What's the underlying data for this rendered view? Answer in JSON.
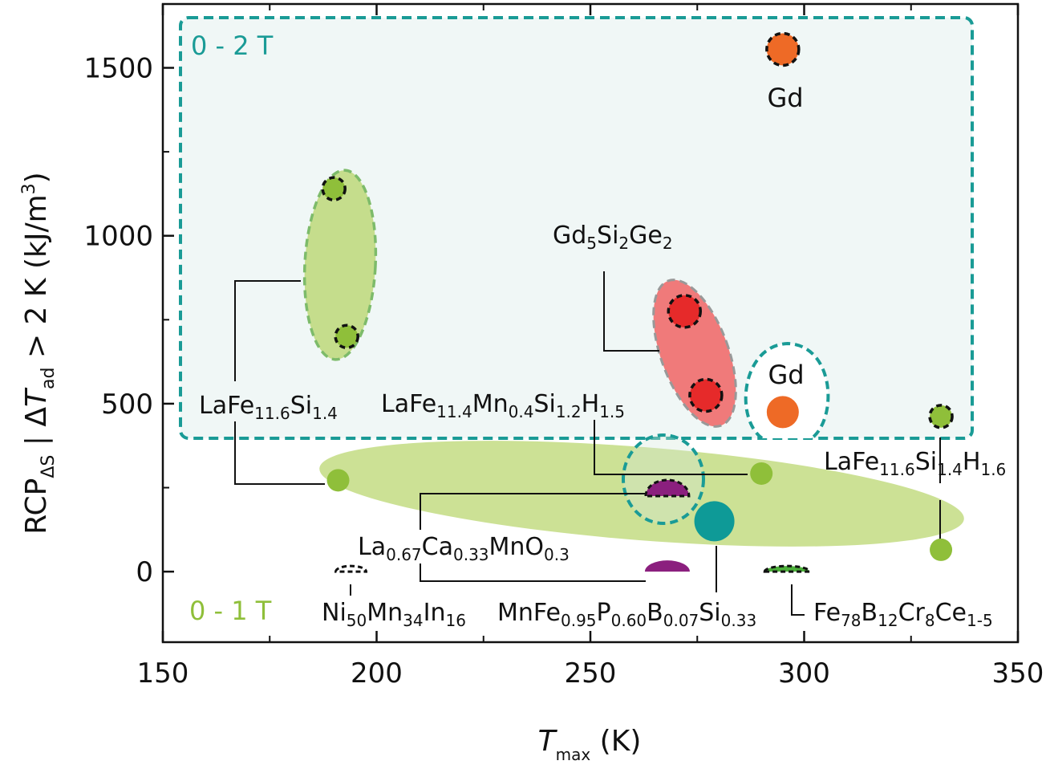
{
  "chart_data": {
    "type": "scatter",
    "x_axis": {
      "label_italic": "T",
      "label_sub": "max",
      "label_unit": " (K)",
      "range": [
        150,
        350
      ],
      "major_ticks": [
        150,
        200,
        250,
        300,
        350
      ]
    },
    "y_axis": {
      "label_main": "RCP",
      "label_sub1": "ΔS",
      "label_pipe": " | Δ",
      "label_italic": "T",
      "label_sub2": "ad",
      "label_rest": " > 2 K (kJ/m",
      "label_sup": "3",
      "label_end": ")",
      "range": [
        -210,
        1690
      ],
      "major_ticks": [
        0,
        500,
        1000,
        1500
      ]
    },
    "field_regions": [
      {
        "label": "0 - 2 T",
        "color": "#1a9b96"
      },
      {
        "label": "0 - 1 T",
        "color": "#8fbf3a"
      }
    ],
    "points": [
      {
        "material": "Gd",
        "x": 295,
        "y": 1555,
        "field": "0-2 T",
        "color": "#ee6a26"
      },
      {
        "material": "Gd",
        "x": 295,
        "y": 475,
        "field": "0-1 T",
        "color": "#ee6a26"
      },
      {
        "material": "LaFe11.6Si1.4",
        "x": 190,
        "y": 1140,
        "field": "0-2 T",
        "color": "#8fbf3a"
      },
      {
        "material": "LaFe11.6Si1.4",
        "x": 193,
        "y": 700,
        "field": "0-2 T",
        "color": "#8fbf3a"
      },
      {
        "material": "LaFe11.6Si1.4",
        "x": 191,
        "y": 272,
        "field": "0-1 T",
        "color": "#8fbf3a"
      },
      {
        "material": "Gd5Si2Ge2",
        "x": 272,
        "y": 775,
        "field": "0-2 T",
        "color": "#e62a2a"
      },
      {
        "material": "Gd5Si2Ge2",
        "x": 277,
        "y": 525,
        "field": "0-2 T",
        "color": "#e62a2a"
      },
      {
        "material": "LaFe11.4Mn0.4Si1.2H1.5",
        "x": 290,
        "y": 292,
        "field": "0-1 T",
        "color": "#8fbf3a"
      },
      {
        "material": "LaFe11.6Si1.4H1.6",
        "x": 332,
        "y": 462,
        "field": "0-2 T",
        "color": "#8fbf3a"
      },
      {
        "material": "LaFe11.6Si1.4H1.6",
        "x": 332,
        "y": 65,
        "field": "0-1 T",
        "color": "#8fbf3a"
      },
      {
        "material": "La0.67Ca0.33MnO0.3",
        "x": 268,
        "y": 225,
        "field": "0-2 T",
        "color": "#8b1f7e"
      },
      {
        "material": "MnFe0.95P0.60B0.07Si0.33",
        "x": 279,
        "y": 150,
        "field": "0-1 T",
        "color": "#0e9a97"
      },
      {
        "material": "MnFe0.95P0.60B0.07Si0.33",
        "x": 268,
        "y": 0,
        "field": "0-1 T",
        "color": "#8b1f7e"
      },
      {
        "material": "Ni50Mn34In16",
        "x": 194,
        "y": 0,
        "field": "0-2 T",
        "color": "#ffffff"
      },
      {
        "material": "Fe78B12Cr8Ce1-5",
        "x": 296,
        "y": 0,
        "field": "0-2 T",
        "color": "#4caf3a"
      }
    ],
    "labels": {
      "gd_top": "Gd",
      "gd_bottom": "Gd",
      "lafesi": {
        "a": "LaFe",
        "b": "11.6",
        "c": "Si",
        "d": "1.4"
      },
      "gdsige": {
        "a": "Gd",
        "b": "5",
        "c": "Si",
        "d": "2",
        "e": "Ge",
        "f": "2"
      },
      "lafemn": {
        "a": "LaFe",
        "b": "11.4",
        "c": "Mn",
        "d": "0.4",
        "e": "Si",
        "f": "1.2",
        "g": "H",
        "h": "1.5"
      },
      "lafesih": {
        "a": "LaFe",
        "b": "11.6",
        "c": "Si",
        "d": "1.4",
        "e": "H",
        "f": "1.6"
      },
      "lacamn": {
        "a": "La",
        "b": "0.67",
        "c": "Ca",
        "d": "0.33",
        "e": "MnO",
        "f": "0.3"
      },
      "nimnin": {
        "a": "Ni",
        "b": "50",
        "c": "Mn",
        "d": "34",
        "e": "In",
        "f": "16"
      },
      "mnfep": {
        "a": "MnFe",
        "b": "0.95",
        "c": "P",
        "d": "0.60",
        "e": "B",
        "f": "0.07",
        "g": "Si",
        "h": "0.33"
      },
      "febcr": {
        "a": "Fe",
        "b": "78",
        "c": "B",
        "d": "12",
        "e": "Cr",
        "f": "8",
        "g": "Ce",
        "h": "1-5"
      }
    }
  }
}
